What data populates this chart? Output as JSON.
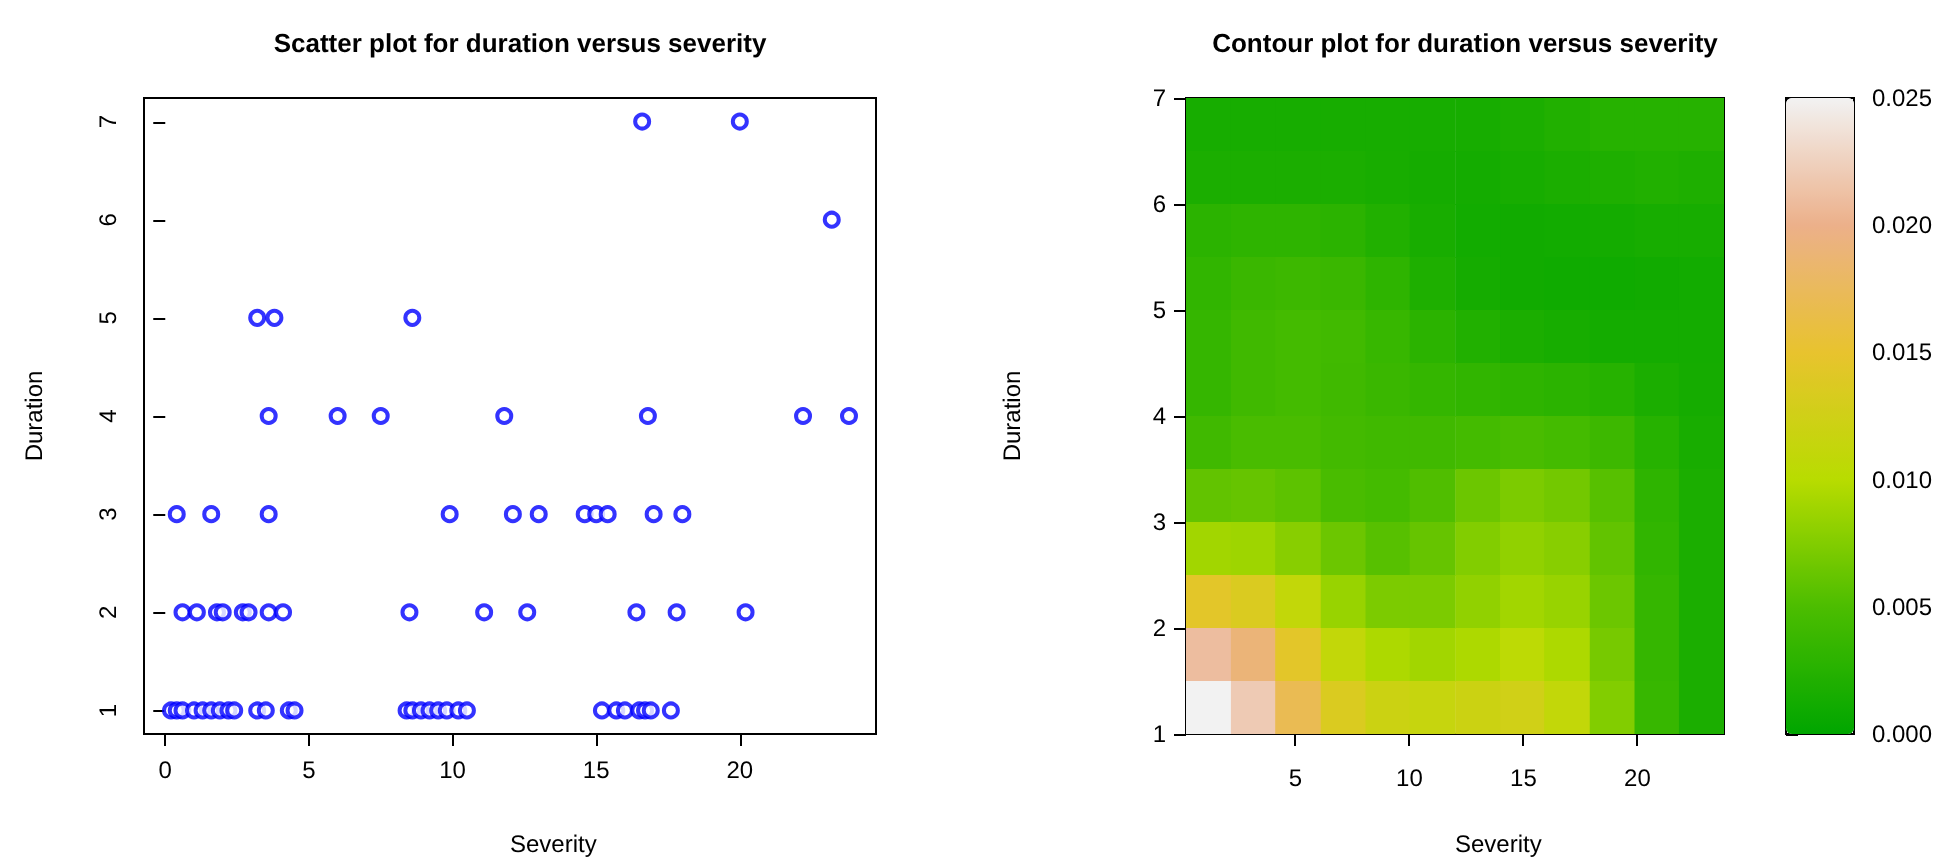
{
  "chart_data": [
    {
      "type": "scatter",
      "title": "Scatter plot for duration versus severity",
      "xlabel": "Severity",
      "ylabel": "Duration",
      "marker": "circle",
      "xlim": [
        -0.74,
        24.74
      ],
      "ylim": [
        0.76,
        7.24
      ],
      "xticks": [
        0,
        5,
        10,
        15,
        20
      ],
      "yticks": [
        1,
        2,
        3,
        4,
        5,
        6,
        7
      ],
      "series": [
        {
          "color": "#0000ff",
          "x": [
            0.2,
            0.4,
            0.6,
            1.0,
            1.3,
            1.6,
            1.9,
            2.2,
            2.4,
            3.2,
            3.5,
            4.3,
            4.5,
            8.4,
            8.6,
            8.9,
            9.2,
            9.5,
            9.8,
            10.2,
            10.5,
            15.2,
            15.7,
            16.0,
            16.5,
            16.7,
            16.9,
            17.6,
            0.6,
            1.1,
            1.8,
            2.0,
            2.7,
            2.9,
            3.6,
            4.1,
            8.5,
            11.1,
            12.6,
            16.4,
            17.8,
            20.2,
            0.4,
            1.6,
            3.6,
            9.9,
            12.1,
            13.0,
            14.6,
            15.0,
            15.4,
            17.0,
            18.0,
            3.6,
            6.0,
            7.5,
            11.8,
            16.8,
            22.2,
            23.8,
            3.2,
            3.8,
            8.6,
            23.2,
            16.6,
            20.0
          ],
          "values": [
            1,
            1,
            1,
            1,
            1,
            1,
            1,
            1,
            1,
            1,
            1,
            1,
            1,
            1,
            1,
            1,
            1,
            1,
            1,
            1,
            1,
            1,
            1,
            1,
            1,
            1,
            1,
            1,
            2,
            2,
            2,
            2,
            2,
            2,
            2,
            2,
            2,
            2,
            2,
            2,
            2,
            2,
            3,
            3,
            3,
            3,
            3,
            3,
            3,
            3,
            3,
            3,
            3,
            4,
            4,
            4,
            4,
            4,
            4,
            4,
            5,
            5,
            5,
            6,
            7,
            7
          ]
        }
      ]
    },
    {
      "type": "heatmap",
      "title": "Contour plot for duration versus severity",
      "xlabel": "Severity",
      "ylabel": "Duration",
      "xlim": [
        0.2,
        23.8
      ],
      "ylim": [
        1,
        7
      ],
      "xticks": [
        5,
        10,
        15,
        20
      ],
      "yticks": [
        1,
        2,
        3,
        4,
        5,
        6,
        7
      ],
      "clim": [
        0,
        0.025
      ],
      "cticks": [
        {
          "value": 0,
          "label": "0.000"
        },
        {
          "value": 0.005,
          "label": "0.005"
        },
        {
          "value": 0.01,
          "label": "0.010"
        },
        {
          "value": 0.015,
          "label": "0.015"
        },
        {
          "value": 0.02,
          "label": "0.020"
        },
        {
          "value": 0.025,
          "label": "0.025"
        }
      ],
      "x": [
        1.18,
        3.15,
        5.1,
        7.1,
        9.05,
        11.0,
        13.0,
        14.95,
        16.9,
        18.9,
        20.85,
        22.8
      ],
      "y": [
        6.75,
        6.25,
        5.75,
        5.25,
        4.75,
        4.25,
        3.75,
        3.25,
        2.75,
        2.25,
        1.75,
        1.25
      ],
      "cells": [
        [
          0.0015,
          0.0015,
          0.0015,
          0.0015,
          0.0015,
          0.0015,
          0.0015,
          0.0018,
          0.0022,
          0.0025,
          0.0025,
          0.0025
        ],
        [
          0.0018,
          0.0018,
          0.0018,
          0.0018,
          0.0016,
          0.0014,
          0.0013,
          0.0015,
          0.0018,
          0.002,
          0.0022,
          0.002
        ],
        [
          0.0028,
          0.003,
          0.003,
          0.0028,
          0.0022,
          0.0016,
          0.0012,
          0.0011,
          0.0012,
          0.0013,
          0.0015,
          0.0015
        ],
        [
          0.0032,
          0.0038,
          0.004,
          0.0038,
          0.003,
          0.002,
          0.0014,
          0.0011,
          0.001,
          0.001,
          0.0011,
          0.0012
        ],
        [
          0.0035,
          0.0042,
          0.0045,
          0.0043,
          0.0036,
          0.0028,
          0.0022,
          0.0018,
          0.0015,
          0.0013,
          0.0013,
          0.0013
        ],
        [
          0.0035,
          0.0042,
          0.0045,
          0.0042,
          0.0038,
          0.0034,
          0.0032,
          0.003,
          0.0028,
          0.0025,
          0.0018,
          0.0014
        ],
        [
          0.0042,
          0.0048,
          0.0048,
          0.0044,
          0.0042,
          0.0042,
          0.0045,
          0.0048,
          0.0045,
          0.004,
          0.0025,
          0.0016
        ],
        [
          0.006,
          0.0062,
          0.0058,
          0.0048,
          0.0045,
          0.0052,
          0.0065,
          0.0072,
          0.0068,
          0.0055,
          0.003,
          0.0018
        ],
        [
          0.009,
          0.0088,
          0.0078,
          0.0065,
          0.0055,
          0.0062,
          0.0075,
          0.0082,
          0.0078,
          0.006,
          0.0032,
          0.0018
        ],
        [
          0.0145,
          0.0135,
          0.011,
          0.0085,
          0.0072,
          0.0072,
          0.0082,
          0.009,
          0.0085,
          0.0065,
          0.0035,
          0.0018
        ],
        [
          0.021,
          0.019,
          0.0145,
          0.011,
          0.0095,
          0.009,
          0.0095,
          0.0105,
          0.0095,
          0.007,
          0.0035,
          0.0018
        ],
        [
          0.025,
          0.022,
          0.017,
          0.0135,
          0.012,
          0.0115,
          0.012,
          0.0125,
          0.011,
          0.0075,
          0.0036,
          0.0018
        ]
      ]
    }
  ]
}
